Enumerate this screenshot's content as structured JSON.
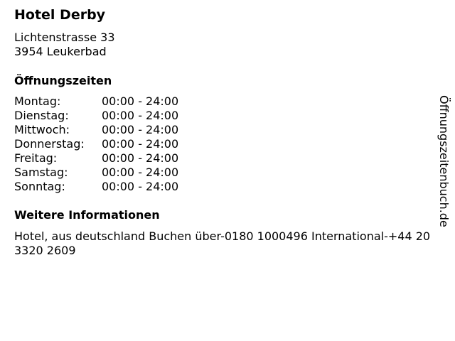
{
  "hotel": {
    "name": "Hotel Derby",
    "address_line1": "Lichtenstrasse 33",
    "address_line2": "3954 Leukerbad"
  },
  "hours": {
    "heading": "Öffnungszeiten",
    "rows": [
      {
        "day": "Montag:",
        "time": "00:00 - 24:00"
      },
      {
        "day": "Dienstag:",
        "time": "00:00 - 24:00"
      },
      {
        "day": "Mittwoch:",
        "time": "00:00 - 24:00"
      },
      {
        "day": "Donnerstag:",
        "time": "00:00 - 24:00"
      },
      {
        "day": "Freitag:",
        "time": "00:00 - 24:00"
      },
      {
        "day": "Samstag:",
        "time": "00:00 - 24:00"
      },
      {
        "day": "Sonntag:",
        "time": "00:00 - 24:00"
      }
    ]
  },
  "info": {
    "heading": "Weitere Informationen",
    "text": "Hotel, aus deutschland Buchen über-0180 1000496 International-+44 20 3320 2609"
  },
  "watermark": "Öffnungszeitenbuch.de"
}
